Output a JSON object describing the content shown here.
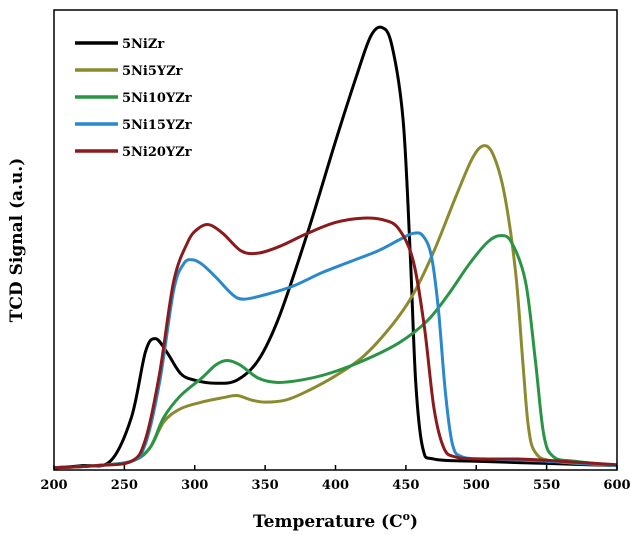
{
  "chart_data": {
    "type": "line",
    "title": "",
    "xlabel": "Temperature (C",
    "xlabel_superscript": "o",
    "xlabel_suffix": ")",
    "ylabel": "TCD Signal (a.u.)",
    "xlim": [
      200,
      600
    ],
    "ylim": [
      0,
      1.05
    ],
    "xticks": [
      200,
      250,
      300,
      350,
      400,
      450,
      500,
      550,
      600
    ],
    "grid": false,
    "legend_position": "top-left",
    "series": [
      {
        "name": "5NiZr",
        "color": "#000000",
        "points": [
          [
            200,
            0.005
          ],
          [
            220,
            0.01
          ],
          [
            240,
            0.02
          ],
          [
            255,
            0.12
          ],
          [
            265,
            0.27
          ],
          [
            272,
            0.3
          ],
          [
            280,
            0.27
          ],
          [
            290,
            0.22
          ],
          [
            300,
            0.205
          ],
          [
            315,
            0.198
          ],
          [
            330,
            0.205
          ],
          [
            345,
            0.25
          ],
          [
            360,
            0.35
          ],
          [
            380,
            0.54
          ],
          [
            400,
            0.75
          ],
          [
            415,
            0.9
          ],
          [
            425,
            0.99
          ],
          [
            433,
            1.01
          ],
          [
            440,
            0.97
          ],
          [
            448,
            0.8
          ],
          [
            453,
            0.5
          ],
          [
            457,
            0.2
          ],
          [
            462,
            0.05
          ],
          [
            470,
            0.025
          ],
          [
            500,
            0.02
          ],
          [
            550,
            0.015
          ],
          [
            600,
            0.01
          ]
        ]
      },
      {
        "name": "5Ni5YZr",
        "color": "#8c8a2e",
        "points": [
          [
            200,
            0.005
          ],
          [
            230,
            0.01
          ],
          [
            255,
            0.02
          ],
          [
            268,
            0.05
          ],
          [
            278,
            0.11
          ],
          [
            290,
            0.14
          ],
          [
            305,
            0.155
          ],
          [
            320,
            0.165
          ],
          [
            330,
            0.17
          ],
          [
            340,
            0.16
          ],
          [
            350,
            0.155
          ],
          [
            365,
            0.16
          ],
          [
            380,
            0.18
          ],
          [
            400,
            0.215
          ],
          [
            420,
            0.26
          ],
          [
            440,
            0.33
          ],
          [
            455,
            0.4
          ],
          [
            470,
            0.5
          ],
          [
            485,
            0.62
          ],
          [
            497,
            0.71
          ],
          [
            505,
            0.74
          ],
          [
            512,
            0.72
          ],
          [
            520,
            0.63
          ],
          [
            528,
            0.45
          ],
          [
            533,
            0.25
          ],
          [
            537,
            0.1
          ],
          [
            542,
            0.04
          ],
          [
            555,
            0.02
          ],
          [
            600,
            0.01
          ]
        ]
      },
      {
        "name": "5Ni10YZr",
        "color": "#2a9445",
        "points": [
          [
            200,
            0.005
          ],
          [
            230,
            0.01
          ],
          [
            255,
            0.02
          ],
          [
            268,
            0.05
          ],
          [
            278,
            0.12
          ],
          [
            290,
            0.17
          ],
          [
            305,
            0.21
          ],
          [
            315,
            0.24
          ],
          [
            323,
            0.25
          ],
          [
            332,
            0.24
          ],
          [
            345,
            0.21
          ],
          [
            358,
            0.2
          ],
          [
            375,
            0.205
          ],
          [
            395,
            0.22
          ],
          [
            420,
            0.25
          ],
          [
            445,
            0.29
          ],
          [
            465,
            0.34
          ],
          [
            480,
            0.4
          ],
          [
            495,
            0.47
          ],
          [
            508,
            0.52
          ],
          [
            517,
            0.535
          ],
          [
            525,
            0.52
          ],
          [
            535,
            0.43
          ],
          [
            542,
            0.25
          ],
          [
            548,
            0.08
          ],
          [
            555,
            0.03
          ],
          [
            570,
            0.02
          ],
          [
            600,
            0.01
          ]
        ]
      },
      {
        "name": "5Ni15YZr",
        "color": "#2a89cc",
        "points": [
          [
            200,
            0.005
          ],
          [
            230,
            0.01
          ],
          [
            255,
            0.02
          ],
          [
            265,
            0.06
          ],
          [
            275,
            0.2
          ],
          [
            285,
            0.41
          ],
          [
            292,
            0.47
          ],
          [
            298,
            0.48
          ],
          [
            305,
            0.47
          ],
          [
            315,
            0.44
          ],
          [
            327,
            0.4
          ],
          [
            335,
            0.39
          ],
          [
            350,
            0.4
          ],
          [
            370,
            0.42
          ],
          [
            390,
            0.45
          ],
          [
            410,
            0.475
          ],
          [
            430,
            0.5
          ],
          [
            445,
            0.525
          ],
          [
            455,
            0.54
          ],
          [
            462,
            0.535
          ],
          [
            468,
            0.49
          ],
          [
            473,
            0.37
          ],
          [
            478,
            0.18
          ],
          [
            483,
            0.06
          ],
          [
            490,
            0.03
          ],
          [
            510,
            0.025
          ],
          [
            550,
            0.02
          ],
          [
            600,
            0.01
          ]
        ]
      },
      {
        "name": "5Ni20YZr",
        "color": "#8a1a1c",
        "points": [
          [
            200,
            0.005
          ],
          [
            230,
            0.01
          ],
          [
            255,
            0.02
          ],
          [
            265,
            0.07
          ],
          [
            275,
            0.22
          ],
          [
            285,
            0.43
          ],
          [
            295,
            0.52
          ],
          [
            302,
            0.55
          ],
          [
            310,
            0.56
          ],
          [
            320,
            0.54
          ],
          [
            333,
            0.5
          ],
          [
            345,
            0.495
          ],
          [
            360,
            0.51
          ],
          [
            380,
            0.54
          ],
          [
            400,
            0.565
          ],
          [
            420,
            0.575
          ],
          [
            435,
            0.57
          ],
          [
            445,
            0.55
          ],
          [
            455,
            0.48
          ],
          [
            463,
            0.33
          ],
          [
            470,
            0.14
          ],
          [
            477,
            0.05
          ],
          [
            485,
            0.03
          ],
          [
            500,
            0.025
          ],
          [
            530,
            0.025
          ],
          [
            560,
            0.02
          ],
          [
            600,
            0.012
          ]
        ]
      }
    ]
  }
}
